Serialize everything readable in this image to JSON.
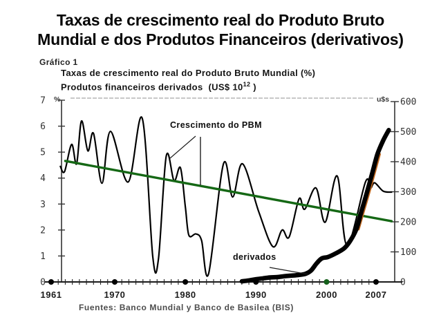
{
  "slide": {
    "title_line1": "Taxas de crescimento real do Produto Bruto",
    "title_line2": "Mundial e dos Produtos Financeiros (derivativos)"
  },
  "chart": {
    "figure_label": "Gráfico 1",
    "subtitle_line1": "Taxas de crescimento real do Produto Bruto Mundial (%)",
    "subtitle_line2_prefix": "Produtos financeiros derivados  (US$ 10",
    "subtitle_line2_sup": "12",
    "subtitle_line2_suffix": " )",
    "left_axis_unit": "%",
    "right_axis_unit": "u$s",
    "annotation_pbm": "Crescimento do PBM",
    "annotation_derivados": "derivados",
    "source": "Fuentes: Banco Mundial y Banco de Basilea (BIS)"
  },
  "chart_data": {
    "type": "line",
    "title": "Taxas de crescimento real do Produto Bruto Mundial (%) e Produtos financeiros derivados (US$ 10^12)",
    "source": "Fuentes: Banco Mundial y Banco de Basilea (BIS)",
    "x_axis": {
      "range": [
        1961,
        2007
      ],
      "labeled_years": [
        1961,
        1970,
        1980,
        1990,
        2000,
        2007
      ],
      "dot_colors": [
        "#000000",
        "#000000",
        "#000000",
        "#000000",
        "#15611c",
        "#000000"
      ],
      "minor_tick_interval": 1
    },
    "left_axis": {
      "unit": "%",
      "range": [
        0,
        7
      ],
      "ticks": [
        0,
        1,
        2,
        3,
        4,
        5,
        6,
        7
      ]
    },
    "right_axis": {
      "unit": "u$s",
      "range": [
        0,
        600
      ],
      "ticks": [
        0,
        100,
        200,
        300,
        400,
        500,
        600
      ]
    },
    "colors": {
      "line_black": "#000000",
      "trend_green": "#156815",
      "derivados_accent": "#c06820"
    },
    "series": [
      {
        "name": "Crescimento do PBM",
        "axis": "left",
        "color": "#000000",
        "width": 2.2,
        "points": [
          [
            1962.3,
            4.45
          ],
          [
            1962.9,
            4.25
          ],
          [
            1963.9,
            5.3
          ],
          [
            1964.6,
            4.55
          ],
          [
            1965.3,
            6.2
          ],
          [
            1966.2,
            5.05
          ],
          [
            1967.0,
            5.72
          ],
          [
            1968.2,
            3.8
          ],
          [
            1969.4,
            5.8
          ],
          [
            1971.9,
            3.85
          ],
          [
            1973.9,
            6.3
          ],
          [
            1975.4,
            0.95
          ],
          [
            1976.2,
            0.9
          ],
          [
            1977.3,
            4.85
          ],
          [
            1978.4,
            3.9
          ],
          [
            1979.3,
            4.4
          ],
          [
            1980.0,
            2.9
          ],
          [
            1980.5,
            1.8
          ],
          [
            1981.5,
            1.85
          ],
          [
            1982.3,
            1.6
          ],
          [
            1983.3,
            0.32
          ],
          [
            1985.4,
            4.55
          ],
          [
            1986.7,
            3.27
          ],
          [
            1988.1,
            4.55
          ],
          [
            1990.4,
            2.7
          ],
          [
            1992.4,
            1.36
          ],
          [
            1993.7,
            2.0
          ],
          [
            1994.7,
            1.73
          ],
          [
            1996.1,
            3.2
          ],
          [
            1996.9,
            2.8
          ],
          [
            1998.5,
            3.62
          ],
          [
            1999.8,
            2.3
          ],
          [
            2001.5,
            4.08
          ],
          [
            2002.9,
            1.4
          ],
          [
            2005.5,
            3.85
          ],
          [
            2006.2,
            3.6
          ],
          [
            2006.8,
            3.82
          ],
          [
            2008.0,
            3.5
          ],
          [
            2009.2,
            3.46
          ]
        ]
      },
      {
        "name": "tendencia",
        "axis": "left",
        "color": "#156815",
        "width": 3.4,
        "points": [
          [
            1963.0,
            4.66
          ],
          [
            2009.2,
            2.34
          ]
        ]
      },
      {
        "name": "derivados",
        "axis": "right",
        "color": "#000000",
        "width": 6.5,
        "points": [
          [
            1988.0,
            2
          ],
          [
            1989,
            5
          ],
          [
            1990,
            9
          ],
          [
            1991,
            12
          ],
          [
            1992,
            15
          ],
          [
            1993,
            16
          ],
          [
            1994,
            19
          ],
          [
            1995,
            21
          ],
          [
            1996,
            23
          ],
          [
            1997,
            27
          ],
          [
            1997.8,
            38
          ],
          [
            1998.6,
            62
          ],
          [
            1999.3,
            78
          ],
          [
            2000.2,
            83
          ],
          [
            2001.3,
            95
          ],
          [
            2002.5,
            112
          ],
          [
            2003.3,
            135
          ],
          [
            2004.2,
            175
          ],
          [
            2005.0,
            240
          ],
          [
            2005.8,
            305
          ],
          [
            2006.5,
            365
          ],
          [
            2007.2,
            425
          ],
          [
            2008.0,
            470
          ],
          [
            2008.8,
            505
          ]
        ]
      }
    ]
  }
}
